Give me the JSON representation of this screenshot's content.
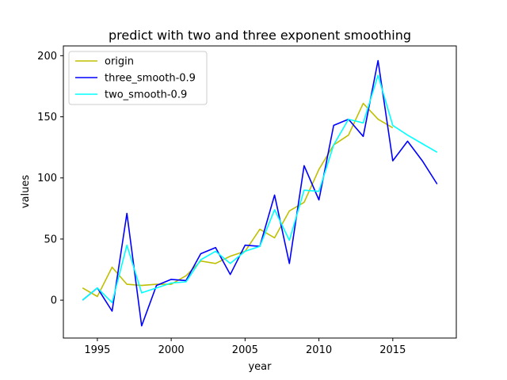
{
  "chart_data": {
    "type": "line",
    "title": "predict with two and three exponent smoothing",
    "xlabel": "year",
    "ylabel": "values",
    "xlim": [
      1992.7,
      2019.3
    ],
    "ylim": [
      -31,
      208
    ],
    "xticks": [
      1995,
      2000,
      2005,
      2010,
      2015
    ],
    "yticks": [
      0,
      50,
      100,
      150,
      200
    ],
    "grid": false,
    "legend_position": "upper-left",
    "series": [
      {
        "name": "origin",
        "color": "#bfbf00",
        "x": [
          1994,
          1995,
          1996,
          1997,
          1998,
          1999,
          2000,
          2001,
          2002,
          2003,
          2004,
          2005,
          2006,
          2007,
          2008,
          2009,
          2010,
          2011,
          2012,
          2013,
          2014,
          2015
        ],
        "values": [
          10,
          3,
          27,
          13,
          12,
          13,
          13,
          20,
          32,
          30,
          36,
          40,
          58,
          51,
          73,
          80,
          107,
          127,
          135,
          161,
          148,
          141
        ]
      },
      {
        "name": "three_smooth-0.9",
        "color": "#0000ff",
        "x": [
          1994,
          1995,
          1996,
          1997,
          1998,
          1999,
          2000,
          2001,
          2002,
          2003,
          2004,
          2005,
          2006,
          2007,
          2008,
          2009,
          2010,
          2011,
          2012,
          2013,
          2014,
          2015,
          2016,
          2017,
          2018
        ],
        "values": [
          0,
          10,
          -9,
          71,
          -21,
          12,
          17,
          16,
          38,
          43,
          21,
          45,
          44,
          86,
          30,
          110,
          82,
          143,
          148,
          134,
          196,
          114,
          130,
          114,
          95
        ]
      },
      {
        "name": "two_smooth-0.9",
        "color": "#00ffff",
        "x": [
          1994,
          1995,
          1996,
          1997,
          1998,
          1999,
          2000,
          2001,
          2002,
          2003,
          2004,
          2005,
          2006,
          2007,
          2008,
          2009,
          2010,
          2011,
          2012,
          2013,
          2014,
          2015,
          2016,
          2017,
          2018
        ],
        "values": [
          0,
          10,
          -2,
          45,
          6,
          10,
          14,
          15,
          33,
          40,
          30,
          40,
          44,
          74,
          49,
          90,
          89,
          127,
          148,
          145,
          184,
          143,
          135,
          128,
          121
        ]
      }
    ]
  }
}
